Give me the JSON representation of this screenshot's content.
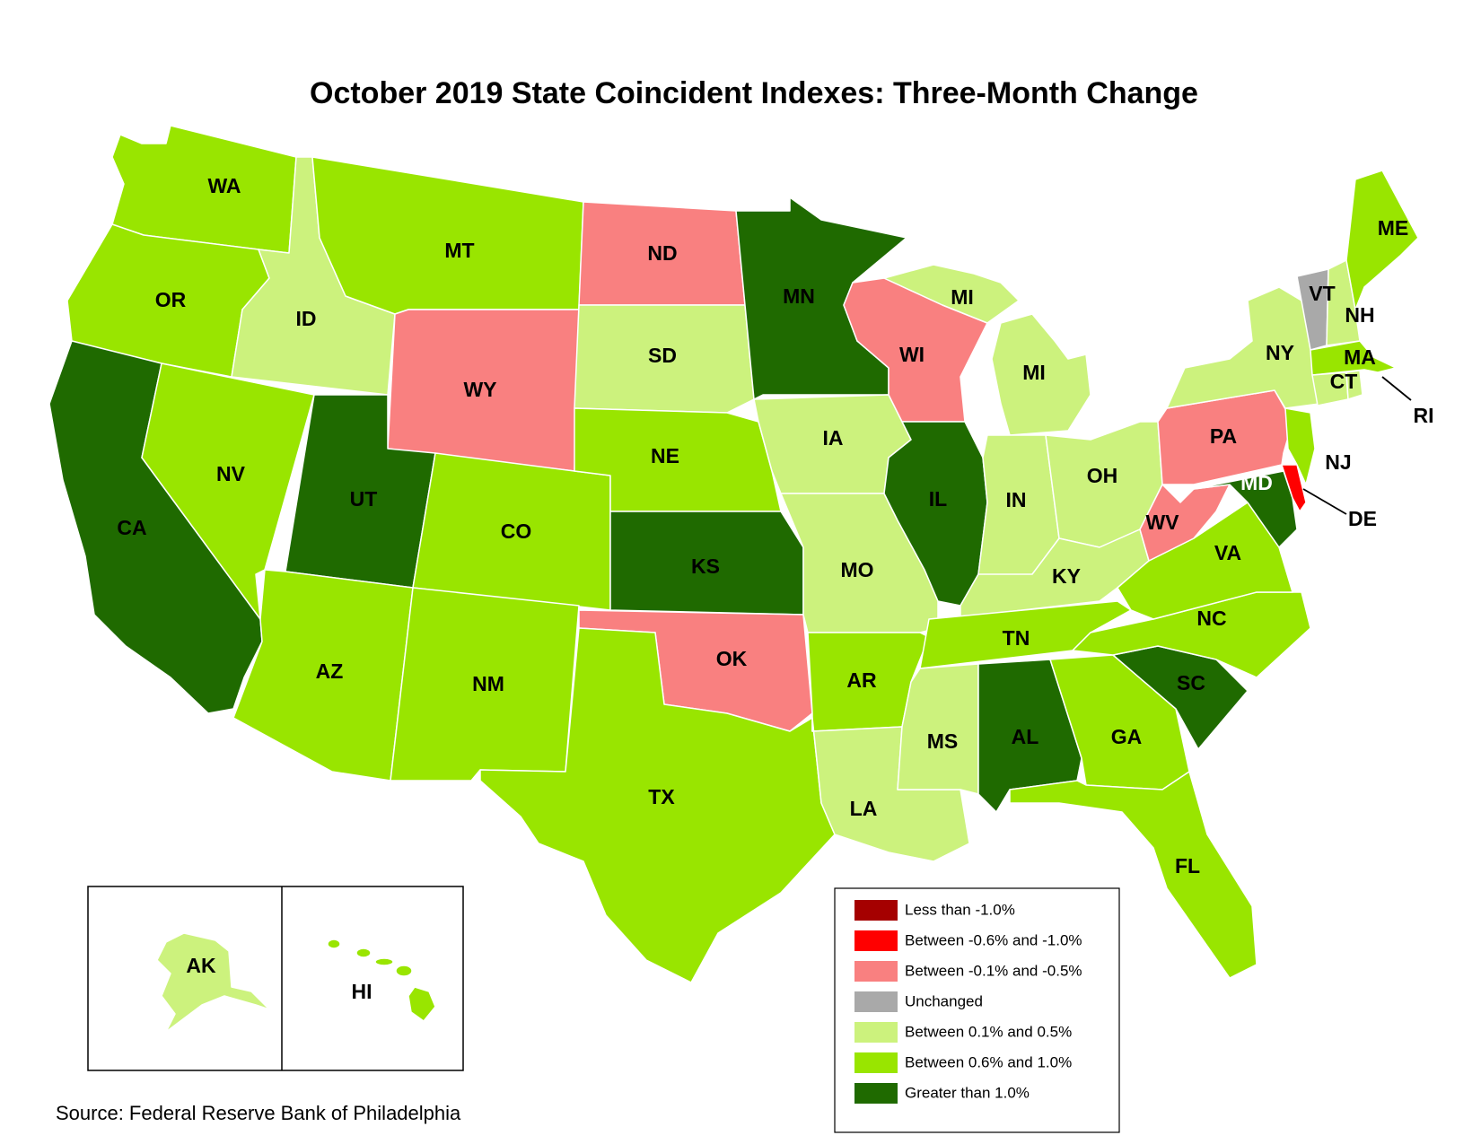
{
  "title": "October 2019 State Coincident Indexes: Three-Month Change",
  "source": "Source: Federal Reserve Bank of Philadelphia",
  "legend": [
    {
      "key": "lt_neg1",
      "label": "Less than -1.0%",
      "color": "#a50000"
    },
    {
      "key": "neg06_neg1",
      "label": "Between -0.6% and -1.0%",
      "color": "#ff0000"
    },
    {
      "key": "neg01_neg05",
      "label": "Between -0.1% and -0.5%",
      "color": "#f98080"
    },
    {
      "key": "unchanged",
      "label": "Unchanged",
      "color": "#a9a9a9"
    },
    {
      "key": "p01_p05",
      "label": "Between 0.1% and 0.5%",
      "color": "#ccf27d"
    },
    {
      "key": "p06_p10",
      "label": "Between 0.6% and 1.0%",
      "color": "#99e500"
    },
    {
      "key": "gt1",
      "label": "Greater than 1.0%",
      "color": "#1f6a00"
    }
  ],
  "states": [
    {
      "abbr": "WA",
      "category": "p06_p10"
    },
    {
      "abbr": "OR",
      "category": "p06_p10"
    },
    {
      "abbr": "CA",
      "category": "gt1"
    },
    {
      "abbr": "ID",
      "category": "p01_p05"
    },
    {
      "abbr": "NV",
      "category": "p06_p10"
    },
    {
      "abbr": "MT",
      "category": "p06_p10"
    },
    {
      "abbr": "WY",
      "category": "neg01_neg05"
    },
    {
      "abbr": "UT",
      "category": "gt1"
    },
    {
      "abbr": "AZ",
      "category": "p06_p10"
    },
    {
      "abbr": "CO",
      "category": "p06_p10"
    },
    {
      "abbr": "NM",
      "category": "p06_p10"
    },
    {
      "abbr": "ND",
      "category": "neg01_neg05"
    },
    {
      "abbr": "SD",
      "category": "p01_p05"
    },
    {
      "abbr": "NE",
      "category": "p06_p10"
    },
    {
      "abbr": "KS",
      "category": "gt1"
    },
    {
      "abbr": "OK",
      "category": "neg01_neg05"
    },
    {
      "abbr": "TX",
      "category": "p06_p10"
    },
    {
      "abbr": "MN",
      "category": "gt1"
    },
    {
      "abbr": "IA",
      "category": "p01_p05"
    },
    {
      "abbr": "MO",
      "category": "p01_p05"
    },
    {
      "abbr": "AR",
      "category": "p06_p10"
    },
    {
      "abbr": "LA",
      "category": "p01_p05"
    },
    {
      "abbr": "WI",
      "category": "neg01_neg05"
    },
    {
      "abbr": "IL",
      "category": "gt1"
    },
    {
      "abbr": "MI",
      "category": "p01_p05"
    },
    {
      "abbr": "IN",
      "category": "p01_p05"
    },
    {
      "abbr": "OH",
      "category": "p01_p05"
    },
    {
      "abbr": "KY",
      "category": "p01_p05"
    },
    {
      "abbr": "TN",
      "category": "p06_p10"
    },
    {
      "abbr": "MS",
      "category": "p01_p05"
    },
    {
      "abbr": "AL",
      "category": "gt1"
    },
    {
      "abbr": "GA",
      "category": "p06_p10"
    },
    {
      "abbr": "FL",
      "category": "p06_p10"
    },
    {
      "abbr": "SC",
      "category": "gt1"
    },
    {
      "abbr": "NC",
      "category": "p06_p10"
    },
    {
      "abbr": "VA",
      "category": "p06_p10"
    },
    {
      "abbr": "WV",
      "category": "neg01_neg05"
    },
    {
      "abbr": "PA",
      "category": "neg01_neg05"
    },
    {
      "abbr": "NY",
      "category": "p01_p05"
    },
    {
      "abbr": "VT",
      "category": "unchanged"
    },
    {
      "abbr": "NH",
      "category": "p01_p05"
    },
    {
      "abbr": "ME",
      "category": "p06_p10"
    },
    {
      "abbr": "MA",
      "category": "p06_p10"
    },
    {
      "abbr": "CT",
      "category": "p01_p05"
    },
    {
      "abbr": "RI",
      "category": "p01_p05"
    },
    {
      "abbr": "NJ",
      "category": "p06_p10"
    },
    {
      "abbr": "DE",
      "category": "neg06_neg1"
    },
    {
      "abbr": "MD",
      "category": "gt1"
    },
    {
      "abbr": "AK",
      "category": "p01_p05"
    },
    {
      "abbr": "HI",
      "category": "p06_p10"
    }
  ]
}
